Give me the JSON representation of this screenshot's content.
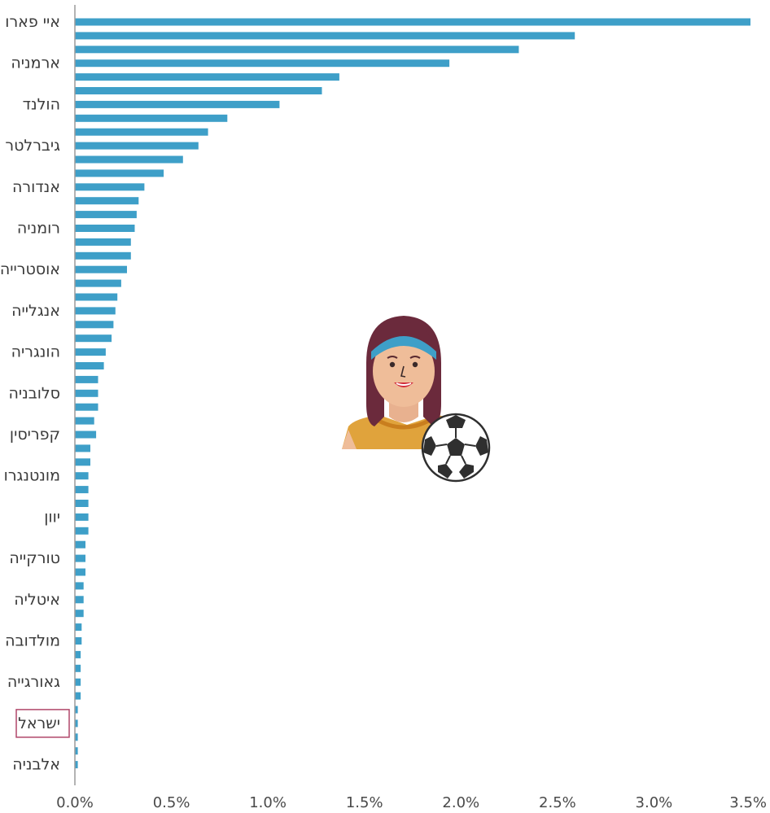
{
  "chart_data": {
    "type": "bar",
    "orientation": "horizontal",
    "categories": [
      "איי פארו",
      "",
      "",
      "ארמניה",
      "",
      "",
      "הולנד",
      "",
      "",
      "גיברלטר",
      "",
      "",
      "אנדורה",
      "",
      "",
      "רומניה",
      "",
      "",
      "אוסטרייה",
      "",
      "",
      "אנגלייה",
      "",
      "",
      "הונגריה",
      "",
      "",
      "סלובניה",
      "",
      "",
      "קפריסין",
      "",
      "",
      "מונטנגרו",
      "",
      "",
      "יוון",
      "",
      "",
      "טורקייה",
      "",
      "",
      "איטליה",
      "",
      "",
      "מולדובה",
      "",
      "",
      "גאורגייה",
      "",
      "",
      "ישראל",
      "",
      "",
      "אלבניה"
    ],
    "values": [
      3.5,
      2.59,
      2.3,
      1.94,
      1.37,
      1.28,
      1.06,
      0.79,
      0.69,
      0.64,
      0.56,
      0.46,
      0.36,
      0.33,
      0.32,
      0.31,
      0.29,
      0.29,
      0.27,
      0.24,
      0.22,
      0.21,
      0.2,
      0.19,
      0.16,
      0.15,
      0.12,
      0.12,
      0.12,
      0.1,
      0.11,
      0.08,
      0.08,
      0.07,
      0.07,
      0.07,
      0.07,
      0.07,
      0.055,
      0.055,
      0.055,
      0.045,
      0.045,
      0.045,
      0.035,
      0.035,
      0.03,
      0.03,
      0.03,
      0.03,
      0.015,
      0.015,
      0.015,
      0.015,
      0.015
    ],
    "xlim": [
      0,
      3.5
    ],
    "x_ticks": [
      "0.0%",
      "0.5%",
      "1.0%",
      "1.5%",
      "2.0%",
      "2.5%",
      "3.0%",
      "3.5%"
    ],
    "highlighted_category": "ישראל",
    "bar_color": "#3e9fc8",
    "highlight_color": "#b0476a",
    "grid": false,
    "legend": "none"
  },
  "illustration": {
    "icon": "woman-with-soccer-ball-icon"
  }
}
